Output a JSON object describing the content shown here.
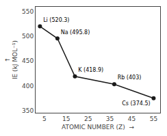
{
  "chart_data": {
    "type": "line",
    "x": [
      3,
      11,
      19,
      37,
      55
    ],
    "values": [
      520.3,
      495.8,
      418.9,
      403.0,
      374.5
    ],
    "value_labels": [
      "Li (520.3)",
      "Na (495.8)",
      "K (418.9)",
      "Rb (403)",
      "Cs (374.5)"
    ],
    "data_labels": true,
    "color": "#1a1a1a",
    "marker": "circle",
    "xlabel": "ATOMIC NUMBER (Z)  →",
    "ylabel": "↑\nIE (kJ MOL⁻¹)",
    "xlim": [
      1,
      58
    ],
    "ylim": [
      345,
      560
    ],
    "xticks": [
      5,
      15,
      25,
      35,
      45,
      55
    ],
    "yticks": [
      350,
      400,
      450,
      500,
      550
    ],
    "grid": false
  }
}
